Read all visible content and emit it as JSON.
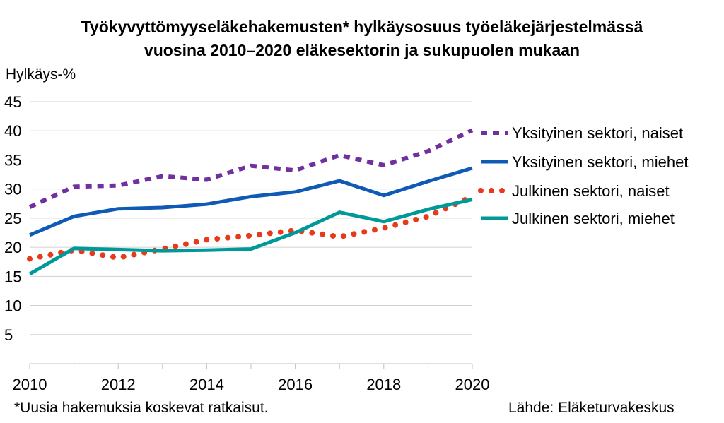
{
  "title_line1": "Työkyvyttömyyseläkehakemusten* hylkäysosuus työeläkejärjestelmässä",
  "title_line2": "vuosina 2010–2020 eläkesektorin ja sukupuolen mukaan",
  "footnote": "*Uusia hakemuksia koskevat ratkaisut.",
  "source": "Lähde: Eläketurvakeskus",
  "chart_data": {
    "type": "line",
    "title": "Työkyvyttömyyseläkehakemusten* hylkäysosuus työeläkejärjestelmässä vuosina 2010–2020 eläkesektorin ja sukupuolen mukaan",
    "xlabel": "",
    "ylabel": "Hylkäys-%",
    "x": [
      2010,
      2011,
      2012,
      2013,
      2014,
      2015,
      2016,
      2017,
      2018,
      2019,
      2020
    ],
    "xticks": [
      2010,
      2012,
      2014,
      2016,
      2018,
      2020
    ],
    "yticks": [
      5,
      10,
      15,
      20,
      25,
      30,
      35,
      40,
      45
    ],
    "ylim": [
      0,
      45
    ],
    "grid": true,
    "legend": "right",
    "series": [
      {
        "name": "Yksityinen sektori, naiset",
        "color": "#7030A0",
        "style": "dashed",
        "values": [
          26.9,
          30.4,
          30.6,
          32.2,
          31.6,
          34.0,
          33.2,
          35.8,
          34.1,
          36.5,
          40.1
        ]
      },
      {
        "name": "Yksityinen sektori, miehet",
        "color": "#0F5AB4",
        "style": "solid",
        "values": [
          22.1,
          25.3,
          26.6,
          26.8,
          27.4,
          28.7,
          29.5,
          31.4,
          28.9,
          31.3,
          33.6
        ]
      },
      {
        "name": "Julkinen sektori, naiset",
        "color": "#E8391A",
        "style": "dotted",
        "values": [
          18.0,
          19.5,
          18.2,
          19.7,
          21.3,
          22.0,
          22.9,
          21.8,
          23.3,
          25.3,
          28.7
        ]
      },
      {
        "name": "Julkinen sektori, miehet",
        "color": "#009999",
        "style": "solid",
        "values": [
          15.4,
          19.8,
          19.6,
          19.4,
          19.5,
          19.7,
          22.5,
          26.0,
          24.4,
          26.5,
          28.2
        ]
      }
    ]
  }
}
